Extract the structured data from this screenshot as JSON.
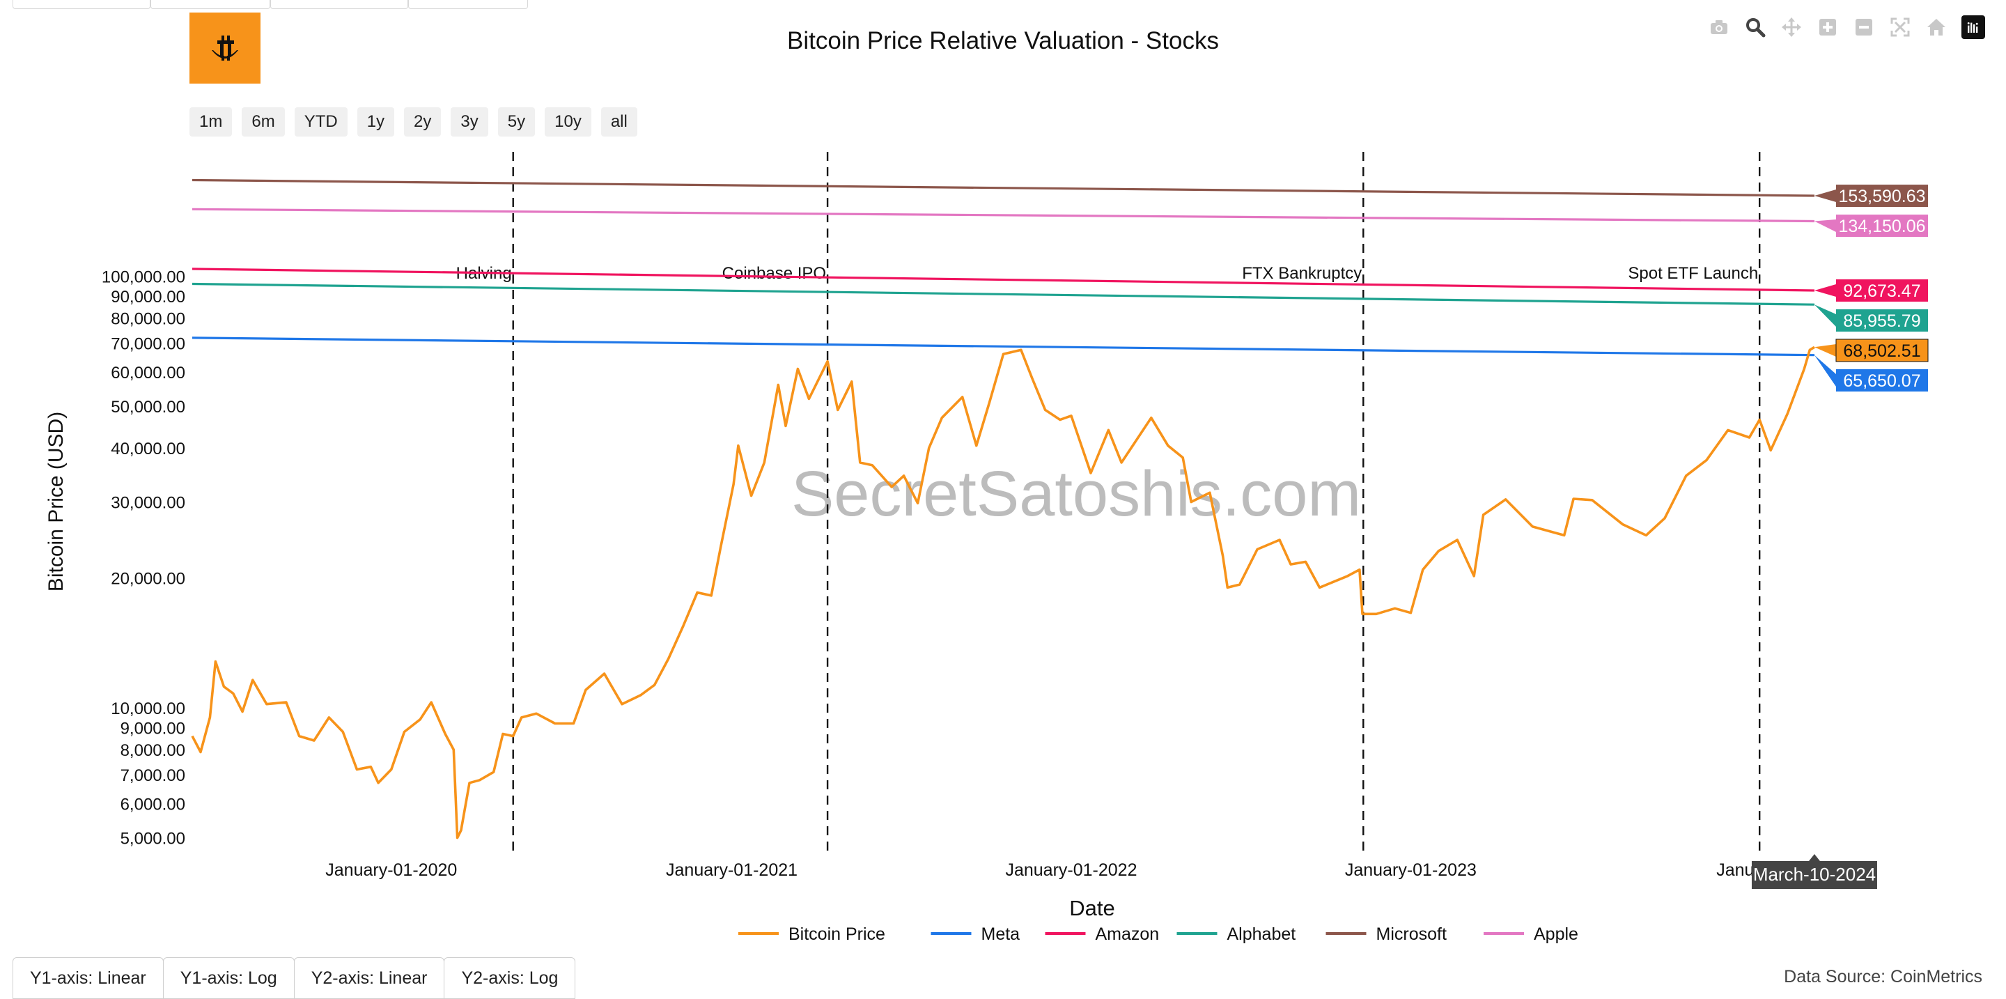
{
  "range_buttons": [
    "1m",
    "6m",
    "YTD",
    "1y",
    "2y",
    "3y",
    "5y",
    "10y",
    "all"
  ],
  "axis_buttons": [
    "Y1-axis: Linear",
    "Y1-axis: Log",
    "Y2-axis: Linear",
    "Y2-axis: Log"
  ],
  "data_source": "Data Source: CoinMetrics",
  "watermark": "SecretSatoshis.com",
  "hover_date": "March-10-2024",
  "modebar_icons": [
    "camera-icon",
    "zoom-icon",
    "pan-icon",
    "zoom-in-icon",
    "zoom-out-icon",
    "autoscale-icon",
    "reset-axes-icon",
    "plotly-logo-icon"
  ],
  "colors": {
    "bitcoin": "#f7931a",
    "meta": "#1f77e8",
    "amazon": "#f0145f",
    "alphabet": "#1fa390",
    "microsoft": "#8c564b",
    "apple": "#e377c2",
    "logo_bg": "#f7931a"
  },
  "chart_data": {
    "type": "line",
    "title": "Bitcoin Price Relative Valuation - Stocks",
    "xlabel": "Date",
    "ylabel": "Bitcoin Price (USD)",
    "y_scale": "log",
    "x_range": [
      "2019-06-01",
      "2024-03-25"
    ],
    "ylim": [
      4600,
      200000
    ],
    "x_ticks": [
      {
        "date": "2020-01-01",
        "label": "January-01-2020"
      },
      {
        "date": "2021-01-01",
        "label": "January-01-2021"
      },
      {
        "date": "2022-01-01",
        "label": "January-01-2022"
      },
      {
        "date": "2023-01-01",
        "label": "January-01-2023"
      },
      {
        "date": "2024-01-01",
        "label": "January-"
      }
    ],
    "y_ticks": [
      {
        "value": 5000,
        "label": "5,000.00"
      },
      {
        "value": 6000,
        "label": "6,000.00"
      },
      {
        "value": 7000,
        "label": "7,000.00"
      },
      {
        "value": 8000,
        "label": "8,000.00"
      },
      {
        "value": 9000,
        "label": "9,000.00"
      },
      {
        "value": 10000,
        "label": "10,000.00"
      },
      {
        "value": 20000,
        "label": "20,000.00"
      },
      {
        "value": 30000,
        "label": "30,000.00"
      },
      {
        "value": 40000,
        "label": "40,000.00"
      },
      {
        "value": 50000,
        "label": "50,000.00"
      },
      {
        "value": 60000,
        "label": "60,000.00"
      },
      {
        "value": 70000,
        "label": "70,000.00"
      },
      {
        "value": 80000,
        "label": "80,000.00"
      },
      {
        "value": 90000,
        "label": "90,000.00"
      },
      {
        "value": 100000,
        "label": "100,000.00"
      }
    ],
    "events": [
      {
        "date": "2020-05-11",
        "label": "Halving"
      },
      {
        "date": "2021-04-14",
        "label": "Coinbase IPO"
      },
      {
        "date": "2022-11-11",
        "label": "FTX Bankruptcy"
      },
      {
        "date": "2024-01-11",
        "label": "Spot ETF Launch"
      }
    ],
    "series": [
      {
        "name": "Bitcoin Price",
        "color_key": "bitcoin",
        "end_label": "68,502.51",
        "points": [
          [
            "2019-06-01",
            8600
          ],
          [
            "2019-06-10",
            7900
          ],
          [
            "2019-06-20",
            9500
          ],
          [
            "2019-06-26",
            12800
          ],
          [
            "2019-07-05",
            11200
          ],
          [
            "2019-07-15",
            10800
          ],
          [
            "2019-07-25",
            9800
          ],
          [
            "2019-08-05",
            11600
          ],
          [
            "2019-08-20",
            10200
          ],
          [
            "2019-09-10",
            10300
          ],
          [
            "2019-09-24",
            8600
          ],
          [
            "2019-10-10",
            8400
          ],
          [
            "2019-10-26",
            9500
          ],
          [
            "2019-11-10",
            8800
          ],
          [
            "2019-11-25",
            7200
          ],
          [
            "2019-12-10",
            7300
          ],
          [
            "2019-12-18",
            6700
          ],
          [
            "2020-01-01",
            7200
          ],
          [
            "2020-01-15",
            8800
          ],
          [
            "2020-02-01",
            9400
          ],
          [
            "2020-02-13",
            10300
          ],
          [
            "2020-02-28",
            8700
          ],
          [
            "2020-03-08",
            8000
          ],
          [
            "2020-03-12",
            5000
          ],
          [
            "2020-03-16",
            5200
          ],
          [
            "2020-03-25",
            6700
          ],
          [
            "2020-04-05",
            6800
          ],
          [
            "2020-04-20",
            7100
          ],
          [
            "2020-04-30",
            8700
          ],
          [
            "2020-05-11",
            8600
          ],
          [
            "2020-05-20",
            9500
          ],
          [
            "2020-06-05",
            9700
          ],
          [
            "2020-06-25",
            9200
          ],
          [
            "2020-07-15",
            9200
          ],
          [
            "2020-07-28",
            11000
          ],
          [
            "2020-08-17",
            12000
          ],
          [
            "2020-09-05",
            10200
          ],
          [
            "2020-09-25",
            10700
          ],
          [
            "2020-10-10",
            11300
          ],
          [
            "2020-10-25",
            13000
          ],
          [
            "2020-11-10",
            15500
          ],
          [
            "2020-11-25",
            18500
          ],
          [
            "2020-12-10",
            18200
          ],
          [
            "2020-12-20",
            23500
          ],
          [
            "2021-01-03",
            33000
          ],
          [
            "2021-01-08",
            40500
          ],
          [
            "2021-01-22",
            31000
          ],
          [
            "2021-02-05",
            37000
          ],
          [
            "2021-02-20",
            56000
          ],
          [
            "2021-02-28",
            45000
          ],
          [
            "2021-03-13",
            61000
          ],
          [
            "2021-03-25",
            52000
          ],
          [
            "2021-04-14",
            63500
          ],
          [
            "2021-04-25",
            49000
          ],
          [
            "2021-05-10",
            57000
          ],
          [
            "2021-05-19",
            37000
          ],
          [
            "2021-06-01",
            36500
          ],
          [
            "2021-06-22",
            32500
          ],
          [
            "2021-07-05",
            34500
          ],
          [
            "2021-07-20",
            29800
          ],
          [
            "2021-08-01",
            40000
          ],
          [
            "2021-08-15",
            47000
          ],
          [
            "2021-09-06",
            52500
          ],
          [
            "2021-09-21",
            40500
          ],
          [
            "2021-10-05",
            51000
          ],
          [
            "2021-10-20",
            66000
          ],
          [
            "2021-11-08",
            67500
          ],
          [
            "2021-11-20",
            58000
          ],
          [
            "2021-12-04",
            49000
          ],
          [
            "2021-12-20",
            46500
          ],
          [
            "2022-01-01",
            47500
          ],
          [
            "2022-01-22",
            35000
          ],
          [
            "2022-02-10",
            44000
          ],
          [
            "2022-02-24",
            37000
          ],
          [
            "2022-03-28",
            47000
          ],
          [
            "2022-04-15",
            40500
          ],
          [
            "2022-05-01",
            38000
          ],
          [
            "2022-05-10",
            30000
          ],
          [
            "2022-05-30",
            31500
          ],
          [
            "2022-06-13",
            22500
          ],
          [
            "2022-06-18",
            19000
          ],
          [
            "2022-07-01",
            19300
          ],
          [
            "2022-07-20",
            23300
          ],
          [
            "2022-08-13",
            24500
          ],
          [
            "2022-08-25",
            21500
          ],
          [
            "2022-09-10",
            21800
          ],
          [
            "2022-09-25",
            19000
          ],
          [
            "2022-10-25",
            20200
          ],
          [
            "2022-11-07",
            20900
          ],
          [
            "2022-11-10",
            16500
          ],
          [
            "2022-11-25",
            16500
          ],
          [
            "2022-12-15",
            17000
          ],
          [
            "2023-01-01",
            16600
          ],
          [
            "2023-01-14",
            20900
          ],
          [
            "2023-01-31",
            23100
          ],
          [
            "2023-02-20",
            24500
          ],
          [
            "2023-03-10",
            20200
          ],
          [
            "2023-03-20",
            28000
          ],
          [
            "2023-04-13",
            30400
          ],
          [
            "2023-05-12",
            26300
          ],
          [
            "2023-06-15",
            25100
          ],
          [
            "2023-06-25",
            30500
          ],
          [
            "2023-07-15",
            30300
          ],
          [
            "2023-08-17",
            26600
          ],
          [
            "2023-09-11",
            25100
          ],
          [
            "2023-10-01",
            27500
          ],
          [
            "2023-10-24",
            34500
          ],
          [
            "2023-11-15",
            37500
          ],
          [
            "2023-12-08",
            44000
          ],
          [
            "2023-12-31",
            42300
          ],
          [
            "2024-01-11",
            46500
          ],
          [
            "2024-01-23",
            39500
          ],
          [
            "2024-02-10",
            48000
          ],
          [
            "2024-02-28",
            61000
          ],
          [
            "2024-03-05",
            67500
          ],
          [
            "2024-03-10",
            68502.51
          ]
        ]
      },
      {
        "name": "Meta",
        "color_key": "meta",
        "end_label": "65,650.07",
        "points": [
          [
            "2019-06-01",
            72000
          ],
          [
            "2024-03-10",
            65650.07
          ]
        ]
      },
      {
        "name": "Amazon",
        "color_key": "amazon",
        "end_label": "92,673.47",
        "points": [
          [
            "2019-06-01",
            104000
          ],
          [
            "2024-03-10",
            92673.47
          ]
        ]
      },
      {
        "name": "Alphabet",
        "color_key": "alphabet",
        "end_label": "85,955.79",
        "points": [
          [
            "2019-06-01",
            96000
          ],
          [
            "2024-03-10",
            85955.79
          ]
        ]
      },
      {
        "name": "Microsoft",
        "color_key": "microsoft",
        "end_label": "153,590.63",
        "points": [
          [
            "2019-06-01",
            167000
          ],
          [
            "2024-03-10",
            153590.63
          ]
        ]
      },
      {
        "name": "Apple",
        "color_key": "apple",
        "end_label": "134,150.06",
        "points": [
          [
            "2019-06-01",
            143000
          ],
          [
            "2024-03-10",
            134150.06
          ]
        ]
      }
    ]
  }
}
